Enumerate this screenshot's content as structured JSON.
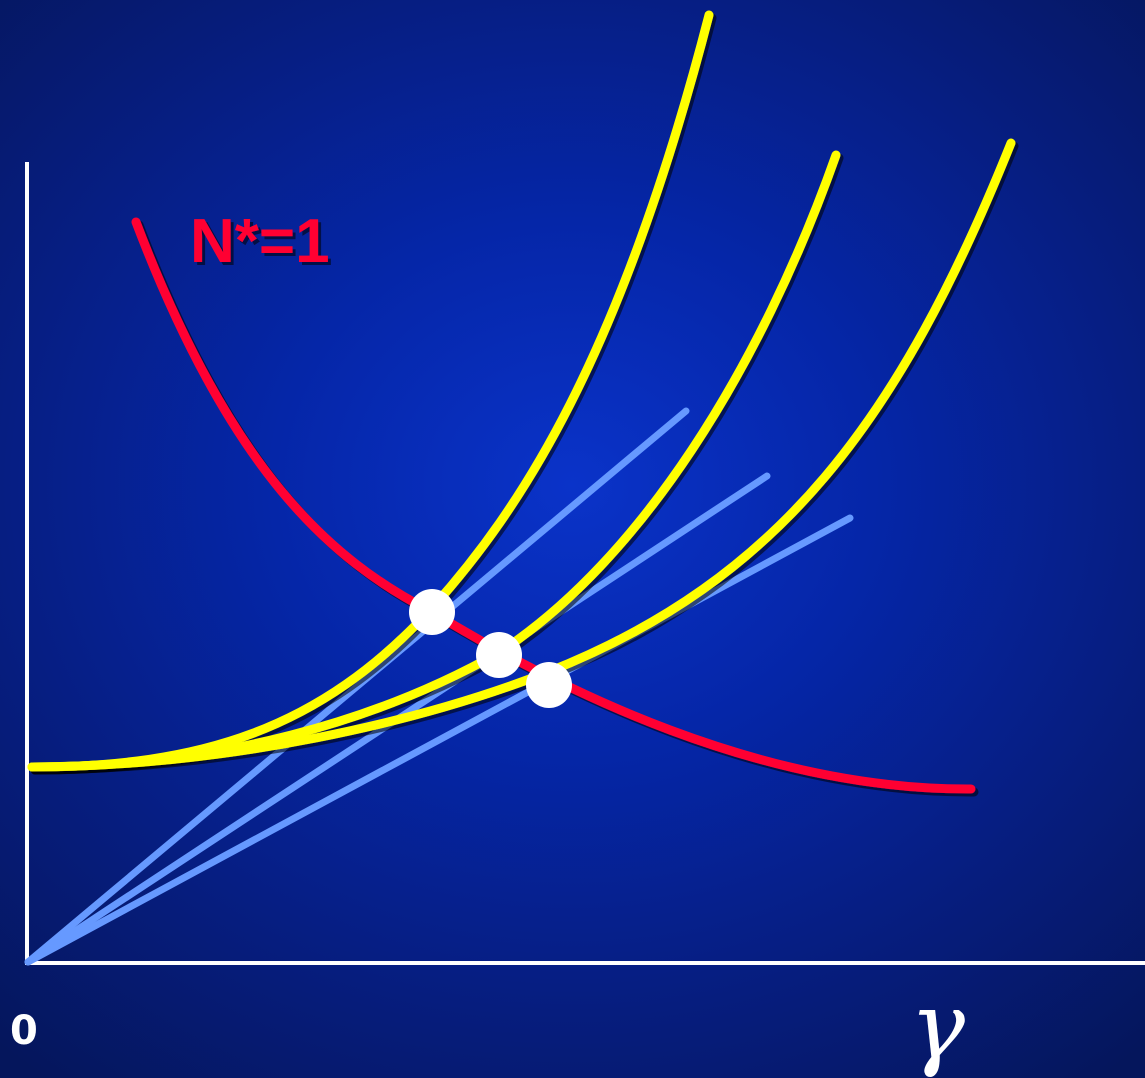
{
  "labels": {
    "curve_label": "N*=1",
    "origin": "0",
    "x_axis_symbol": "γ"
  },
  "colors": {
    "background": "#0526a8",
    "axes": "#ffffff",
    "yellow_curves": "#ffff00",
    "red_curve": "#ff0033",
    "blue_lines": "#6699ff",
    "intersection_dots": "#ffffff"
  },
  "diagram": {
    "yellow_curve_count": 3,
    "blue_line_count": 3,
    "intersection_count": 3
  }
}
